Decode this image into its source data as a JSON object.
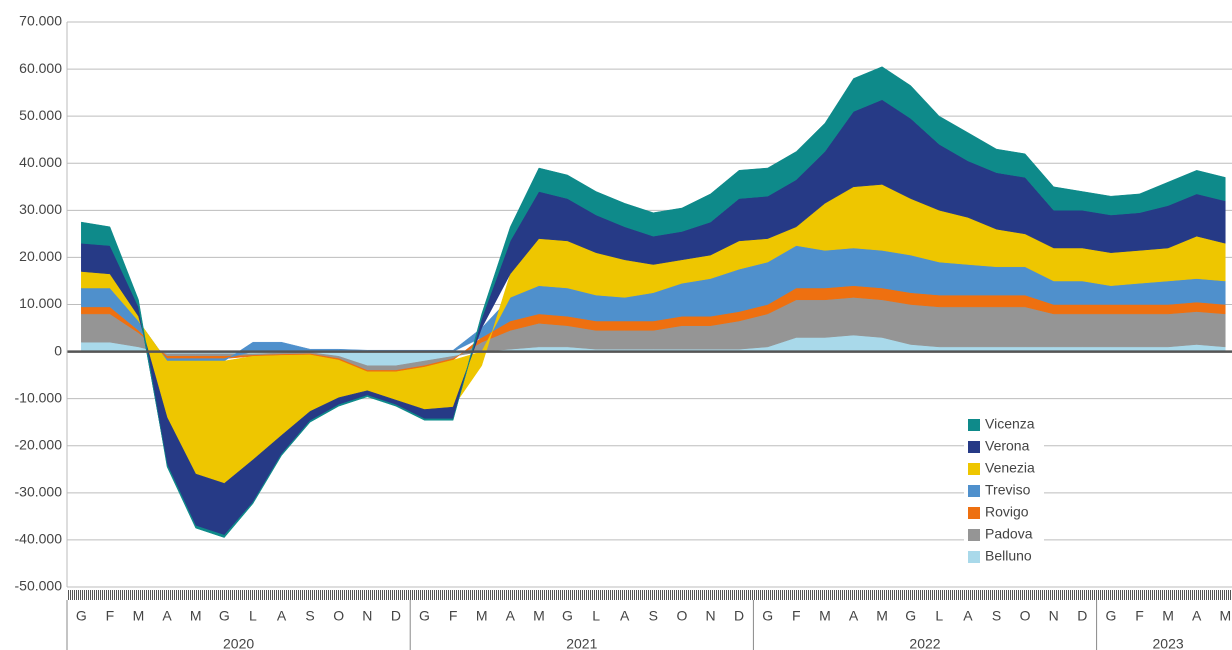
{
  "chart_data": {
    "type": "area",
    "stacked": true,
    "categories": [
      "G",
      "F",
      "M",
      "A",
      "M",
      "G",
      "L",
      "A",
      "S",
      "O",
      "N",
      "D",
      "G",
      "F",
      "M",
      "A",
      "M",
      "G",
      "L",
      "A",
      "S",
      "O",
      "N",
      "D",
      "G",
      "F",
      "M",
      "A",
      "M",
      "G",
      "L",
      "A",
      "S",
      "O",
      "N",
      "D",
      "G",
      "F",
      "M",
      "A",
      "M"
    ],
    "year_groups": [
      "2020",
      "2021",
      "2022",
      "2023"
    ],
    "ylim": [
      -50000,
      70000
    ],
    "yticks": [
      {
        "value": -50000,
        "label": "-50.000"
      },
      {
        "value": -40000,
        "label": "-40.000"
      },
      {
        "value": -30000,
        "label": "-30.000"
      },
      {
        "value": -20000,
        "label": "-20.000"
      },
      {
        "value": -10000,
        "label": "-10.000"
      },
      0,
      {
        "value": 10000,
        "label": "10.000"
      },
      {
        "value": 20000,
        "label": "20.000"
      },
      {
        "value": 30000,
        "label": "30.000"
      },
      {
        "value": 40000,
        "label": "40.000"
      },
      {
        "value": 50000,
        "label": "50.000"
      },
      {
        "value": 60000,
        "label": "60.000"
      },
      {
        "value": 70000,
        "label": "70.000"
      }
    ],
    "grid": true,
    "legend": "bottom-right",
    "series": [
      {
        "name": "Belluno",
        "color": "#a9d9ea",
        "values": [
          2000,
          2000,
          1000,
          -500,
          -500,
          -500,
          -500,
          -300,
          -200,
          -1000,
          -3000,
          -3000,
          -2000,
          -1000,
          0,
          500,
          1000,
          1000,
          500,
          500,
          500,
          500,
          500,
          500,
          1000,
          3000,
          3000,
          3500,
          3000,
          1500,
          1000,
          1000,
          1000,
          1000,
          1000,
          1000,
          1000,
          1000,
          1000,
          1500,
          1000
        ]
      },
      {
        "name": "Padova",
        "color": "#959595",
        "values": [
          6000,
          6000,
          3000,
          -500,
          -500,
          -500,
          -300,
          -300,
          -300,
          -500,
          -1000,
          -1000,
          -1000,
          -500,
          2000,
          4000,
          5000,
          4500,
          4000,
          4000,
          4000,
          5000,
          5000,
          6000,
          7000,
          8000,
          8000,
          8000,
          8000,
          8500,
          8500,
          8500,
          8500,
          8500,
          7000,
          7000,
          7000,
          7000,
          7000,
          7000,
          7000
        ]
      },
      {
        "name": "Rovigo",
        "color": "#ee7010",
        "values": [
          1500,
          1500,
          500,
          -500,
          -500,
          -500,
          -200,
          -200,
          -200,
          -300,
          -300,
          -300,
          -300,
          -300,
          1000,
          2000,
          2000,
          2000,
          2000,
          2000,
          2000,
          2000,
          2000,
          2000,
          2000,
          2500,
          2500,
          2500,
          2500,
          2500,
          2500,
          2500,
          2500,
          2500,
          2000,
          2000,
          2000,
          2000,
          2000,
          2000,
          2000
        ]
      },
      {
        "name": "Treviso",
        "color": "#4f90cc",
        "values": [
          4000,
          4000,
          2000,
          -500,
          -500,
          -500,
          2000,
          2000,
          500,
          500,
          300,
          300,
          300,
          300,
          2000,
          5000,
          6000,
          6000,
          5500,
          5000,
          6000,
          7000,
          8000,
          9000,
          9000,
          9000,
          8000,
          8000,
          8000,
          8000,
          7000,
          6500,
          6000,
          6000,
          5000,
          5000,
          4000,
          4500,
          5000,
          5000,
          5000
        ]
      },
      {
        "name": "Venezia",
        "color": "#eec600",
        "values": [
          3500,
          3000,
          1000,
          -12000,
          -24000,
          -26000,
          -22000,
          -17000,
          -12000,
          -8000,
          -4000,
          -6000,
          -9000,
          -10000,
          -3000,
          5000,
          10000,
          10000,
          9000,
          8000,
          6000,
          5000,
          5000,
          6000,
          5000,
          4000,
          10000,
          13000,
          14000,
          12000,
          11000,
          10000,
          8000,
          7000,
          7000,
          7000,
          7000,
          7000,
          7000,
          9000,
          8000
        ]
      },
      {
        "name": "Verona",
        "color": "#263a86",
        "values": [
          6000,
          6000,
          2000,
          -10000,
          -11000,
          -11000,
          -9000,
          -4000,
          -2000,
          -1500,
          -1000,
          -1000,
          -2000,
          -2500,
          2000,
          7000,
          10000,
          9000,
          8000,
          7000,
          6000,
          6000,
          7000,
          9000,
          9000,
          10000,
          11000,
          16000,
          18000,
          17000,
          14000,
          12000,
          12000,
          12000,
          8000,
          8000,
          8000,
          8000,
          9000,
          9000,
          9000
        ]
      },
      {
        "name": "Vicenza",
        "color": "#0e8a8a",
        "values": [
          4500,
          4000,
          1500,
          -500,
          -500,
          -500,
          -300,
          -300,
          -300,
          -300,
          -300,
          -300,
          -300,
          -300,
          1000,
          3000,
          5000,
          5000,
          5000,
          5000,
          5000,
          5000,
          6000,
          6000,
          6000,
          6000,
          6000,
          7000,
          7000,
          7000,
          6000,
          6000,
          5000,
          5000,
          5000,
          4000,
          4000,
          4000,
          5000,
          5000,
          5000
        ]
      }
    ]
  }
}
